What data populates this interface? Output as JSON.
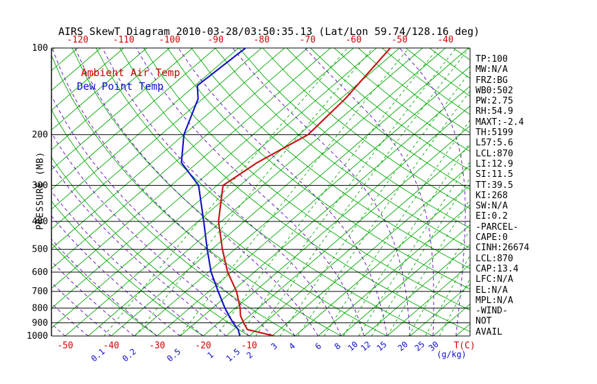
{
  "title": "AIRS SkewT Diagram 2010-03-28/03:50:35.13 (Lat/Lon 59.74/128.16 deg)",
  "legend": {
    "temp": "Ambient Air Temp",
    "dewpoint": "Dew Point Temp"
  },
  "axes": {
    "y_label": "PRESSURE (MB)",
    "pressure_ticks": [
      100,
      200,
      300,
      400,
      500,
      600,
      700,
      800,
      900,
      1000
    ],
    "top_temp_labels": [
      -120,
      -110,
      -100,
      -90,
      -80,
      -70,
      -60,
      -50,
      -40
    ],
    "bottom_temp_labels": [
      -50,
      -40,
      -30,
      -20,
      -10
    ],
    "temp_unit_label": "T(C)",
    "mixing_unit_label": "(g/kg)"
  },
  "colors": {
    "green": "#00a800",
    "purple": "#5d00b8",
    "red": "#d10000",
    "blue": "#0b0bd0",
    "black": "#000000"
  },
  "side_panel": [
    "TP:100",
    "MW:N/A",
    "FRZ:BG",
    "WB0:502",
    "PW:2.75",
    "RH:54.9",
    "MAXT:-2.4",
    "TH:5199",
    "L57:5.6",
    "LCL:870",
    "LI:12.9",
    "SI:11.5",
    "TT:39.5",
    "KI:268",
    "SW:N/A",
    "EI:0.2",
    "-PARCEL-",
    "CAPE:0",
    "CINH:26674",
    "LCL:870",
    "CAP:13.4",
    "LFC:N/A",
    "EL:N/A",
    "MPL:N/A",
    "-WIND-",
    "NOT",
    "AVAIL"
  ],
  "chart_data": {
    "type": "line",
    "title": "AIRS SkewT Diagram 2010-03-28/03:50:35.13 (Lat/Lon 59.74/128.16 deg)",
    "xlabel": "T(C)",
    "ylabel": "PRESSURE (MB)",
    "x_axis": "temperature C, skewed 45 deg",
    "y_axis": "pressure mb, log scale",
    "pressure_range_mb": [
      100,
      1000
    ],
    "surface_temp_range_C": [
      -50,
      38
    ],
    "grid": true,
    "legend_position": "top-left inside plot",
    "background": {
      "isotherms_C": {
        "min": -130,
        "max": 40,
        "step": 5
      },
      "dry_adiabats_K": {
        "min": 243.15,
        "max": 463.15,
        "step": 10
      },
      "moist_adiabats_C": {
        "min": -55,
        "max": 65,
        "step": 5
      },
      "mixing_ratio_g_kg": [
        0.1,
        0.2,
        0.5,
        1,
        1.5,
        2,
        3,
        4,
        6,
        8,
        10,
        12,
        15,
        20,
        25,
        30
      ]
    },
    "series": [
      {
        "name": "Ambient Air Temp",
        "color": "#c81414",
        "points": [
          [
            1000,
            -4.5
          ],
          [
            950,
            -12.0
          ],
          [
            900,
            -14.5
          ],
          [
            850,
            -17.0
          ],
          [
            800,
            -19.0
          ],
          [
            700,
            -24.0
          ],
          [
            600,
            -30.8
          ],
          [
            500,
            -37.7
          ],
          [
            400,
            -45.6
          ],
          [
            300,
            -53.7
          ],
          [
            250,
            -52.0
          ],
          [
            200,
            -48.0
          ],
          [
            150,
            -49.0
          ],
          [
            100,
            -52.0
          ]
        ]
      },
      {
        "name": "Dew Point Temp",
        "color": "#1414c8",
        "points": [
          [
            1000,
            -12.0
          ],
          [
            950,
            -14.0
          ],
          [
            900,
            -16.8
          ],
          [
            850,
            -19.5
          ],
          [
            800,
            -22.3
          ],
          [
            700,
            -28.0
          ],
          [
            600,
            -34.4
          ],
          [
            500,
            -41.0
          ],
          [
            400,
            -48.8
          ],
          [
            300,
            -59.0
          ],
          [
            250,
            -68.5
          ],
          [
            200,
            -75.0
          ],
          [
            150,
            -81.0
          ],
          [
            135,
            -84.5
          ],
          [
            100,
            -83.5
          ]
        ]
      }
    ]
  }
}
